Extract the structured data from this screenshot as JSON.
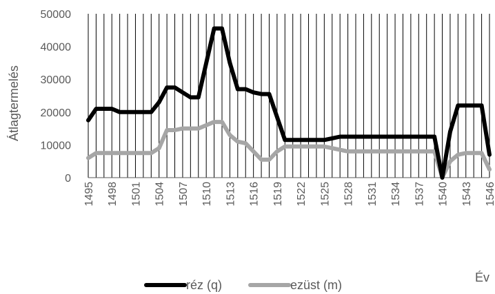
{
  "chart_data": {
    "type": "line",
    "xlabel": "Év",
    "ylabel": "Átlagtermelés",
    "ylim": [
      0,
      50000
    ],
    "y_ticks": [
      "0",
      "10000",
      "20000",
      "30000",
      "40000",
      "50000"
    ],
    "x_start": 1495,
    "x_end": 1546,
    "x_tick_labels": [
      "1495",
      "1498",
      "1501",
      "1504",
      "1507",
      "1510",
      "1513",
      "1516",
      "1519",
      "1522",
      "1525",
      "1528",
      "1531",
      "1534",
      "1537",
      "1540",
      "1543",
      "1546"
    ],
    "grid": "vertical",
    "legend_position": "bottom",
    "x": [
      1495,
      1496,
      1497,
      1498,
      1499,
      1500,
      1501,
      1502,
      1503,
      1504,
      1505,
      1506,
      1507,
      1508,
      1509,
      1510,
      1511,
      1512,
      1513,
      1514,
      1515,
      1516,
      1517,
      1518,
      1519,
      1520,
      1521,
      1522,
      1523,
      1524,
      1525,
      1526,
      1527,
      1528,
      1529,
      1530,
      1531,
      1532,
      1533,
      1534,
      1535,
      1536,
      1537,
      1538,
      1539,
      1540,
      1541,
      1542,
      1543,
      1544,
      1545,
      1546
    ],
    "series": [
      {
        "name": "réz (q)",
        "color": "#000000",
        "values": [
          17500,
          21000,
          21000,
          21000,
          20000,
          20000,
          20000,
          20000,
          20000,
          23000,
          27500,
          27500,
          26000,
          24500,
          24500,
          35000,
          45500,
          45500,
          35000,
          27000,
          27000,
          26000,
          25500,
          25500,
          18500,
          11500,
          11500,
          11500,
          11500,
          11500,
          11500,
          12000,
          12500,
          12500,
          12500,
          12500,
          12500,
          12500,
          12500,
          12500,
          12500,
          12500,
          12500,
          12500,
          12500,
          0,
          14000,
          22000,
          22000,
          22000,
          22000,
          7000
        ]
      },
      {
        "name": "ezüst (m)",
        "color": "#a6a6a6",
        "values": [
          6000,
          7500,
          7500,
          7500,
          7500,
          7500,
          7500,
          7500,
          7500,
          9000,
          14500,
          14500,
          15000,
          15000,
          15000,
          16000,
          17000,
          17000,
          13000,
          11000,
          10500,
          8000,
          5500,
          5500,
          8000,
          9500,
          9500,
          9500,
          9500,
          9500,
          9500,
          9000,
          8500,
          8000,
          8000,
          8000,
          8000,
          8000,
          8000,
          8000,
          8000,
          8000,
          8000,
          8000,
          8000,
          0,
          5000,
          7000,
          7500,
          7500,
          7500,
          2500
        ]
      }
    ]
  }
}
